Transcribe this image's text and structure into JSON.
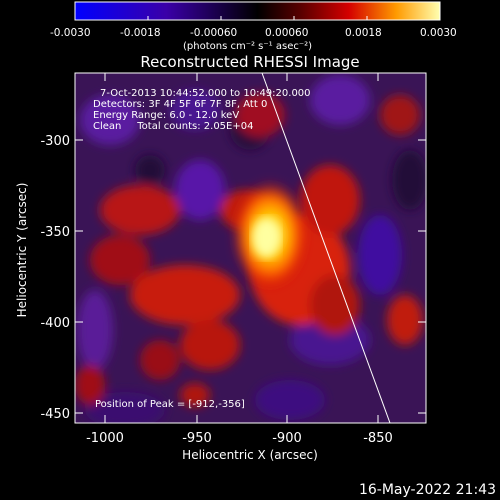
{
  "colorbar": {
    "tick_labels": [
      "-0.0030",
      "-0.0018",
      "-0.00060",
      "0.00060",
      "0.0018",
      "0.0030"
    ],
    "unit": "(photons cm⁻² s⁻¹ asec⁻²)"
  },
  "image": {
    "title": "Reconstructed RHESSI Image",
    "info_lines": [
      "7-Oct-2013 10:44:52.000 to 10:49:20.000",
      "Detectors: 3F 4F 5F 6F 7F 8F, Att 0",
      "Energy Range: 6.0 - 12.0 keV",
      "Clean     Total counts: 2.05E+04"
    ],
    "peak_text": "Position of Peak = [-912,-356]"
  },
  "axes": {
    "xlabel": "Heliocentric X (arcsec)",
    "ylabel": "Heliocentric Y (arcsec)",
    "x_ticks": [
      "-1000",
      "-950",
      "-900",
      "-850"
    ],
    "y_ticks": [
      "-300",
      "-350",
      "-400",
      "-450"
    ]
  },
  "timestamp": "16-May-2022 21:43"
}
